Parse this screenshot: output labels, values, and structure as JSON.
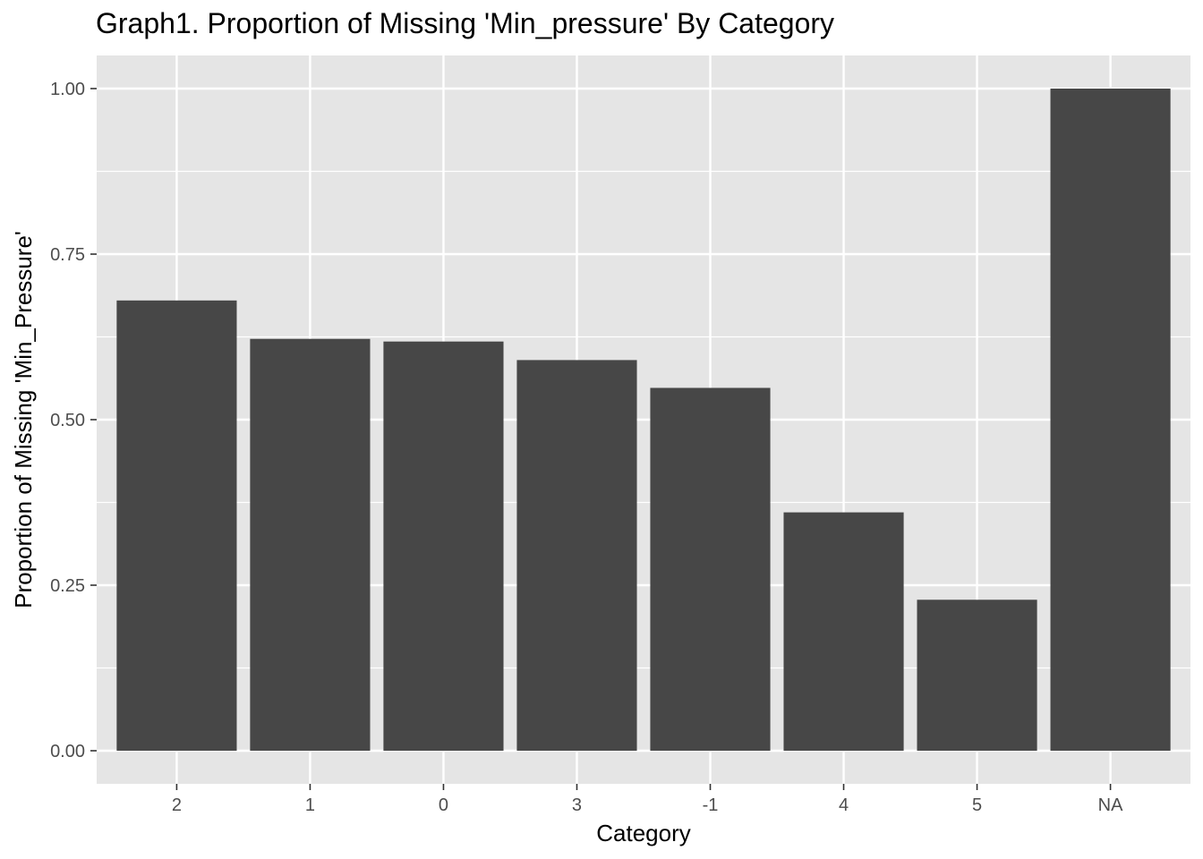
{
  "chart_data": {
    "type": "bar",
    "title": "Graph1. Proportion of Missing 'Min_pressure' By Category",
    "xlabel": "Category",
    "ylabel": "Proportion of Missing 'Min_Pressure'",
    "categories": [
      "2",
      "1",
      "0",
      "3",
      "-1",
      "4",
      "5",
      "NA"
    ],
    "values": [
      0.68,
      0.622,
      0.618,
      0.59,
      0.548,
      0.36,
      0.228,
      1.0
    ],
    "ylim": [
      -0.05,
      1.05
    ],
    "yticks": [
      0,
      0.25,
      0.5,
      0.75,
      1.0
    ],
    "ytick_labels": [
      "0.00",
      "0.25",
      "0.50",
      "0.75",
      "1.00"
    ],
    "grid": true,
    "colors": {
      "panel": "#e5e5e5",
      "bar": "#474747",
      "grid": "#ffffff",
      "tick": "#333333",
      "tick_label": "#4d4d4d"
    }
  }
}
